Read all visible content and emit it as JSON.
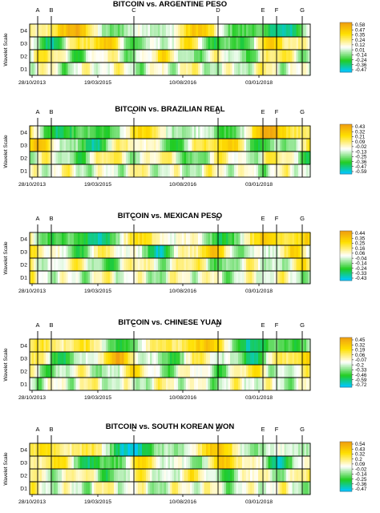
{
  "y_axis_label": "Wavelet Scale",
  "event_markers": [
    "A",
    "B",
    "C",
    "D",
    "E",
    "F",
    "G"
  ],
  "x_tick_labels": [
    "28/10/2013",
    "19/03/2015",
    "10/08/2016",
    "03/01/2018"
  ],
  "level_labels": [
    "D4",
    "D3",
    "D2",
    "D1"
  ],
  "colors": {
    "strong_positive": "#f0a010",
    "positive": "#ffe000",
    "neutral": "#ffffff",
    "negative": "#22cc22",
    "strong_negative": "#00c8ff"
  },
  "chart_data": [
    {
      "type": "heatmap",
      "title": "BITCOIN vs. ARGENTINE PESO",
      "ylabel": "Wavelet Scale",
      "rows": [
        "D4",
        "D3",
        "D2",
        "D1"
      ],
      "x_ticks": [
        "28/10/2013",
        "19/03/2015",
        "10/08/2016",
        "03/01/2018"
      ],
      "colorbar_ticks": [
        0.58,
        0.47,
        0.35,
        0.24,
        0.12,
        0.01,
        -0.14,
        -0.24,
        -0.36,
        -0.47
      ]
    },
    {
      "type": "heatmap",
      "title": "BITCOIN vs. BRAZILIAN REAL",
      "ylabel": "Wavelet Scale",
      "rows": [
        "D4",
        "D3",
        "D2",
        "D1"
      ],
      "x_ticks": [
        "28/10/2013",
        "19/03/2015",
        "10/08/2016",
        "03/01/2018"
      ],
      "colorbar_ticks": [
        0.43,
        0.32,
        0.21,
        0.09,
        -0.02,
        -0.13,
        -0.25,
        -0.36,
        -0.47,
        -0.59
      ]
    },
    {
      "type": "heatmap",
      "title": "BITCOIN vs. MEXICAN PESO",
      "ylabel": "Wavelet Scale",
      "rows": [
        "D4",
        "D3",
        "D2",
        "D1"
      ],
      "x_ticks": [
        "28/10/2013",
        "19/03/2015",
        "10/08/2016",
        "03/01/2018"
      ],
      "colorbar_ticks": [
        0.44,
        0.35,
        0.25,
        0.16,
        0.06,
        -0.04,
        -0.14,
        -0.24,
        -0.33,
        -0.43
      ]
    },
    {
      "type": "heatmap",
      "title": "BITCOIN vs. CHINESE YUAN",
      "ylabel": "Wavelet Scale",
      "rows": [
        "D4",
        "D3",
        "D2",
        "D1"
      ],
      "x_ticks": [
        "28/10/2013",
        "19/03/2015",
        "10/08/2016",
        "03/01/2018"
      ],
      "colorbar_ticks": [
        0.45,
        0.32,
        0.19,
        0.06,
        -0.07,
        -0.2,
        -0.33,
        -0.46,
        -0.59,
        -0.72
      ]
    },
    {
      "type": "heatmap",
      "title": "BITCOIN vs. SOUTH KOREAN WON",
      "ylabel": "Wavelet Scale",
      "rows": [
        "D4",
        "D3",
        "D2",
        "D1"
      ],
      "x_ticks": [
        "28/10/2013",
        "19/03/2015",
        "10/08/2016",
        "03/01/2018"
      ],
      "colorbar_ticks": [
        0.54,
        0.43,
        0.32,
        0.2,
        0.09,
        -0.02,
        -0.14,
        -0.25,
        -0.36,
        -0.47
      ]
    }
  ]
}
